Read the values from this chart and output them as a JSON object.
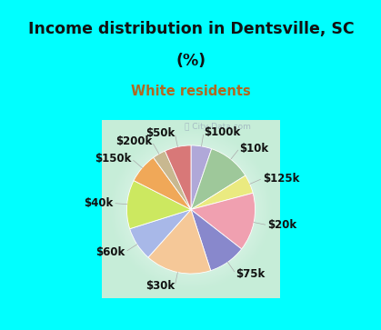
{
  "title_line1": "Income distribution in Dentsville, SC",
  "title_line2": "(%)",
  "subtitle": "White residents",
  "title_color": "#111111",
  "subtitle_color": "#b06820",
  "background_cyan": "#00ffff",
  "labels": [
    "$100k",
    "$10k",
    "$125k",
    "$20k",
    "$75k",
    "$30k",
    "$60k",
    "$40k",
    "$150k",
    "$200k",
    "$50k"
  ],
  "sizes": [
    5.5,
    11.5,
    5.0,
    15.5,
    10.0,
    17.5,
    9.0,
    13.0,
    8.0,
    3.5,
    7.0
  ],
  "colors": [
    "#b0a8d8",
    "#9ec89a",
    "#eaea80",
    "#f0a0b0",
    "#8888cc",
    "#f5c898",
    "#a8b8e8",
    "#cce860",
    "#f0a858",
    "#c8b890",
    "#d87878"
  ],
  "startangle": 90,
  "labeldistance": 1.22,
  "label_fontsize": 8.5,
  "watermark": "ⓘ City-Data.com",
  "watermark_color": "#99aabb"
}
